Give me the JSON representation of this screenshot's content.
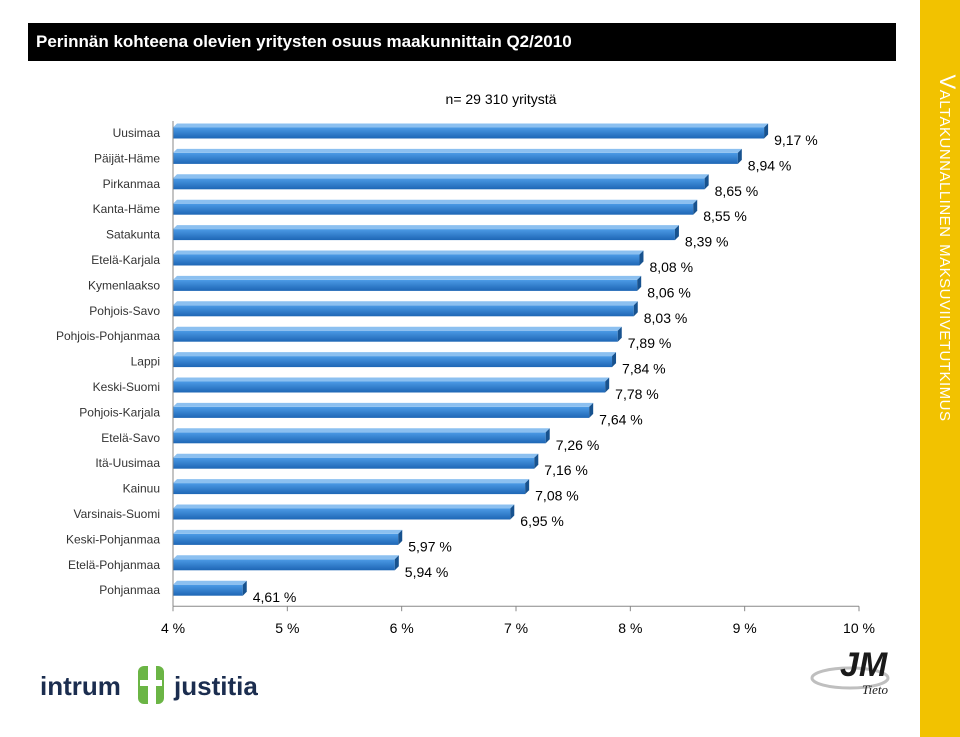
{
  "title": "Perinnän kohteena olevien yritysten osuus maakunnittain Q2/2010",
  "side_label": "Valtakunnallinen maksuviivetutkimus",
  "logos": {
    "intrum": "intrum justitia",
    "jm": "JM",
    "jm_sub": "Tieto"
  },
  "colors": {
    "accent": "#f2c200",
    "bar": "#2f7fd0",
    "bar_dark": "#1d5fa3",
    "title_bg": "#000000"
  },
  "chart_data": {
    "type": "bar",
    "orientation": "horizontal",
    "annotation": "n= 29 310 yritystä",
    "categories": [
      "Uusimaa",
      "Päijät-Häme",
      "Pirkanmaa",
      "Kanta-Häme",
      "Satakunta",
      "Etelä-Karjala",
      "Kymenlaakso",
      "Pohjois-Savo",
      "Pohjois-Pohjanmaa",
      "Lappi",
      "Keski-Suomi",
      "Pohjois-Karjala",
      "Etelä-Savo",
      "Itä-Uusimaa",
      "Kainuu",
      "Varsinais-Suomi",
      "Keski-Pohjanmaa",
      "Etelä-Pohjanmaa",
      "Pohjanmaa"
    ],
    "values": [
      9.17,
      8.94,
      8.65,
      8.55,
      8.39,
      8.08,
      8.06,
      8.03,
      7.89,
      7.84,
      7.78,
      7.64,
      7.26,
      7.16,
      7.08,
      6.95,
      5.97,
      5.94,
      4.61
    ],
    "value_labels": [
      "9,17 %",
      "8,94 %",
      "8,65 %",
      "8,55 %",
      "8,39 %",
      "8,08 %",
      "8,06 %",
      "8,03 %",
      "7,89 %",
      "7,84 %",
      "7,78 %",
      "7,64 %",
      "7,26 %",
      "7,16 %",
      "7,08 %",
      "6,95 %",
      "5,97 %",
      "5,94 %",
      "4,61 %"
    ],
    "xlim": [
      4,
      10
    ],
    "xticks": [
      4,
      5,
      6,
      7,
      8,
      9,
      10
    ],
    "xtick_labels": [
      "4 %",
      "5 %",
      "6 %",
      "7 %",
      "8 %",
      "9 %",
      "10 %"
    ],
    "grid": false,
    "legend": "none"
  }
}
